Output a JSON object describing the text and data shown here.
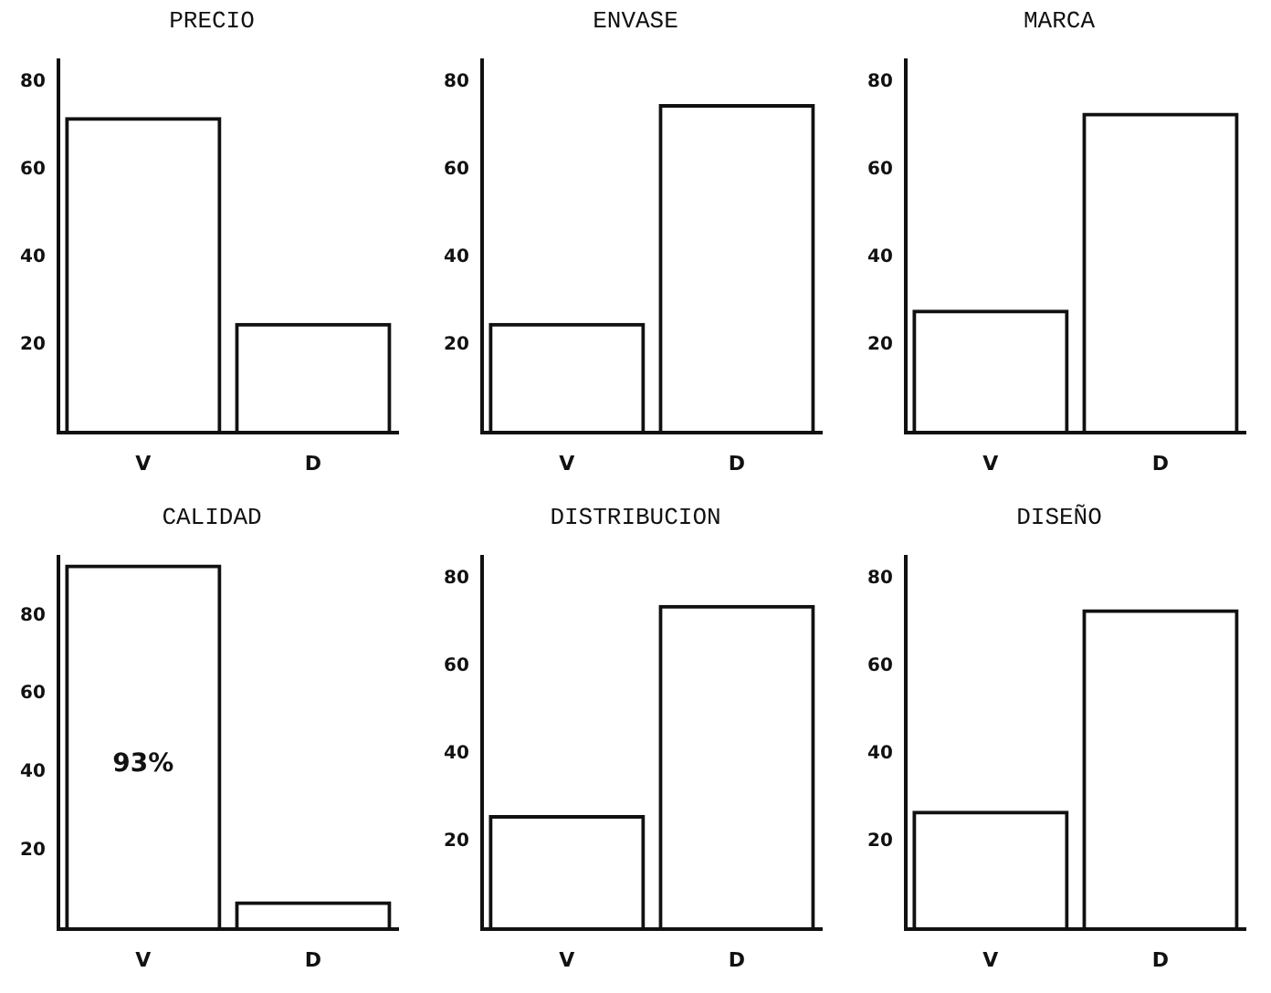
{
  "chart_data": [
    {
      "type": "bar",
      "title": "PRECIO",
      "categories": [
        "V",
        "D"
      ],
      "values": [
        72,
        25
      ],
      "color": "#111111",
      "ylim": [
        0,
        85
      ],
      "yticks": [
        20,
        40,
        60,
        80
      ],
      "grid": false,
      "legend": false
    },
    {
      "type": "bar",
      "title": "ENVASE",
      "categories": [
        "V",
        "D"
      ],
      "values": [
        25,
        75
      ],
      "color": "#111111",
      "ylim": [
        0,
        85
      ],
      "yticks": [
        20,
        40,
        60,
        80
      ],
      "grid": false,
      "legend": false
    },
    {
      "type": "bar",
      "title": "MARCA",
      "categories": [
        "V",
        "D"
      ],
      "values": [
        28,
        73
      ],
      "color": "#111111",
      "ylim": [
        0,
        85
      ],
      "yticks": [
        20,
        40,
        60,
        80
      ],
      "grid": false,
      "legend": false
    },
    {
      "type": "bar",
      "title": "CALIDAD",
      "categories": [
        "V",
        "D"
      ],
      "values": [
        93,
        7
      ],
      "value_labels": [
        "93%",
        null
      ],
      "color": "#111111",
      "ylim": [
        0,
        95
      ],
      "yticks": [
        20,
        40,
        60,
        80
      ],
      "grid": false,
      "legend": false
    },
    {
      "type": "bar",
      "title": "DISTRIBUCION",
      "categories": [
        "V",
        "D"
      ],
      "values": [
        26,
        74
      ],
      "color": "#111111",
      "ylim": [
        0,
        85
      ],
      "yticks": [
        20,
        40,
        60,
        80
      ],
      "grid": false,
      "legend": false
    },
    {
      "type": "bar",
      "title": "DISEÑO",
      "categories": [
        "V",
        "D"
      ],
      "values": [
        27,
        73
      ],
      "color": "#111111",
      "ylim": [
        0,
        85
      ],
      "yticks": [
        20,
        40,
        60,
        80
      ],
      "grid": false,
      "legend": false
    }
  ]
}
